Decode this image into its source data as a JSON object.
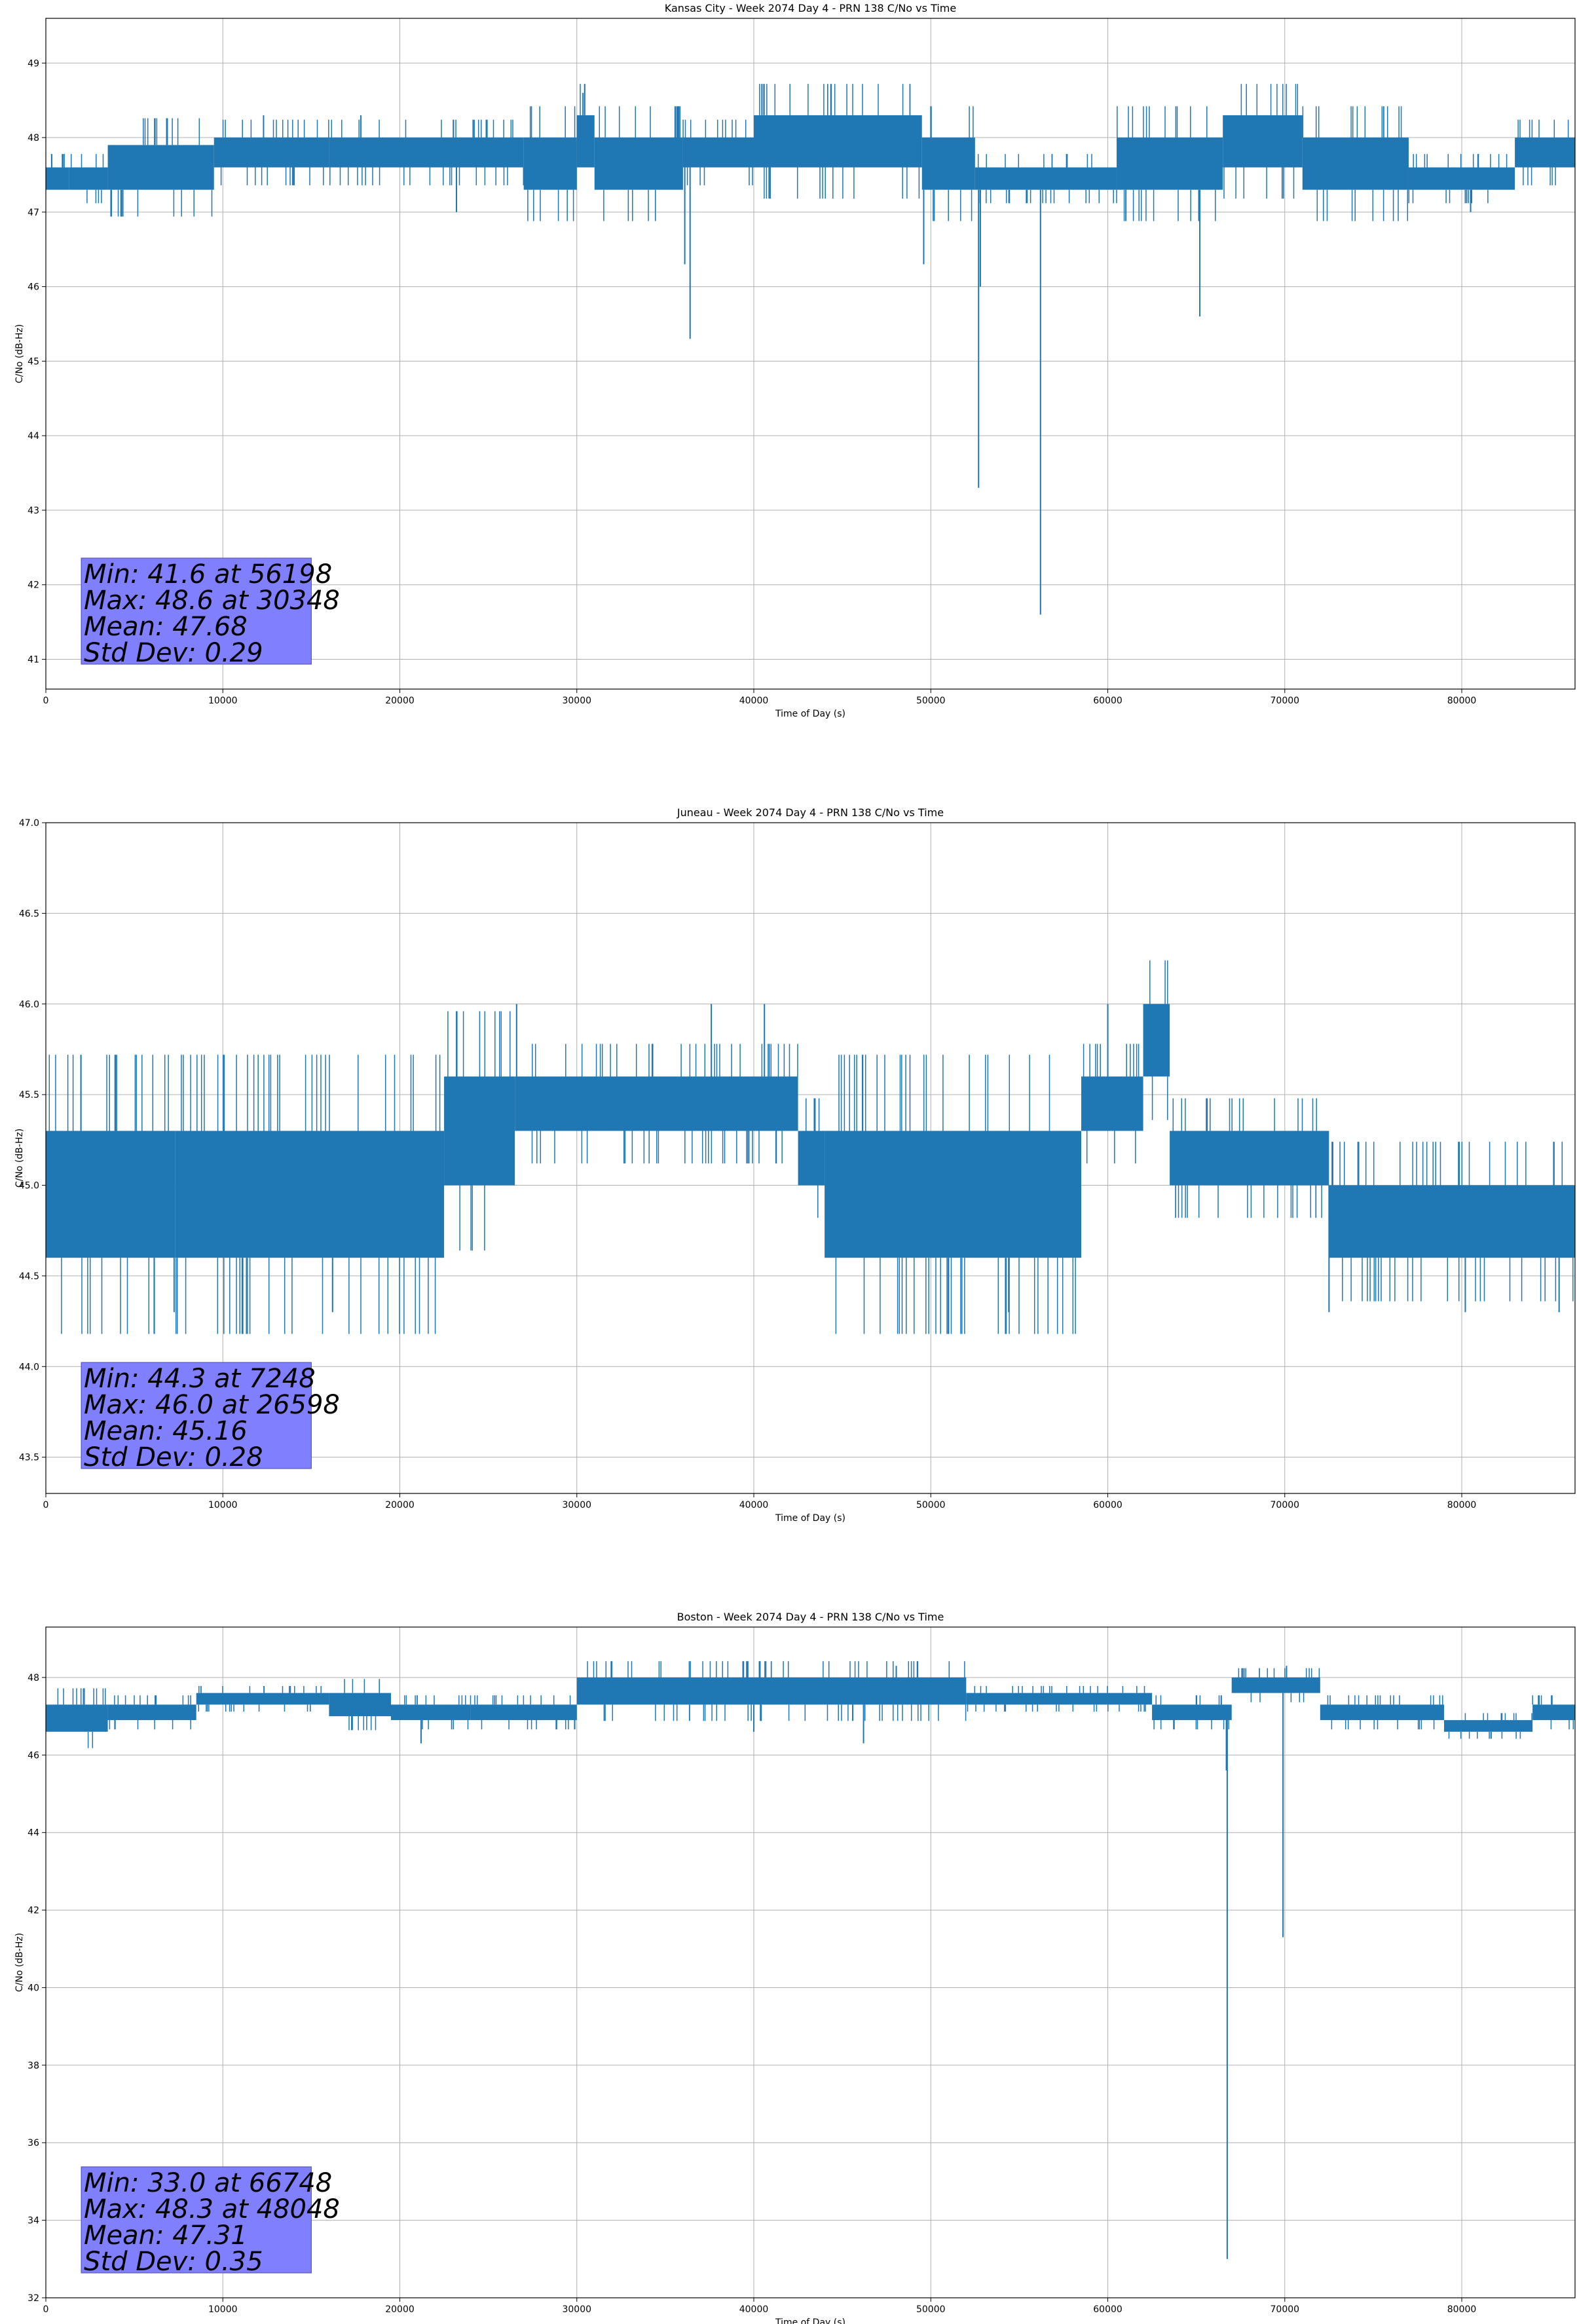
{
  "chart_data": [
    {
      "type": "line",
      "title": "Kansas City - Week 2074 Day 4 - PRN 138 C/No vs Time",
      "xlabel": "Time of Day (s)",
      "ylabel": "C/No (dB-Hz)",
      "xlim": [
        0,
        86400
      ],
      "ylim": [
        40.6,
        49.6
      ],
      "xticks": [
        0,
        10000,
        20000,
        30000,
        40000,
        50000,
        60000,
        70000,
        80000
      ],
      "xtick_labels": [
        "0",
        "10000",
        "20000",
        "30000",
        "40000",
        "50000",
        "60000",
        "70000",
        "80000"
      ],
      "yticks": [
        41,
        42,
        43,
        44,
        45,
        46,
        47,
        48,
        49
      ],
      "ytick_labels": [
        "41",
        "42",
        "43",
        "44",
        "45",
        "46",
        "47",
        "48",
        "49"
      ],
      "grid": true,
      "color": "#1f77b4",
      "series": [
        {
          "band_segments": [
            {
              "x": [
                0,
                1300
              ],
              "y": [
                47.3,
                47.6
              ]
            },
            {
              "x": [
                1300,
                3500
              ],
              "y": [
                47.3,
                47.6
              ]
            },
            {
              "x": [
                3500,
                9500
              ],
              "y": [
                47.3,
                47.9
              ]
            },
            {
              "x": [
                9500,
                16000
              ],
              "y": [
                47.6,
                48.0
              ]
            },
            {
              "x": [
                16000,
                27000
              ],
              "y": [
                47.6,
                48.0
              ]
            },
            {
              "x": [
                27000,
                30000
              ],
              "y": [
                47.3,
                48.0
              ]
            },
            {
              "x": [
                30000,
                31000
              ],
              "y": [
                47.6,
                48.3
              ]
            },
            {
              "x": [
                31000,
                36000
              ],
              "y": [
                47.3,
                48.0
              ]
            },
            {
              "x": [
                36000,
                40000
              ],
              "y": [
                47.6,
                48.0
              ]
            },
            {
              "x": [
                40000,
                49500
              ],
              "y": [
                47.6,
                48.3
              ]
            },
            {
              "x": [
                49500,
                52500
              ],
              "y": [
                47.3,
                48.0
              ]
            },
            {
              "x": [
                52500,
                60500
              ],
              "y": [
                47.3,
                47.6
              ]
            },
            {
              "x": [
                60500,
                66500
              ],
              "y": [
                47.3,
                48.0
              ]
            },
            {
              "x": [
                66500,
                71000
              ],
              "y": [
                47.6,
                48.3
              ]
            },
            {
              "x": [
                71000,
                77000
              ],
              "y": [
                47.3,
                48.0
              ]
            },
            {
              "x": [
                77000,
                83000
              ],
              "y": [
                47.3,
                47.6
              ]
            },
            {
              "x": [
                83000,
                86400
              ],
              "y": [
                47.6,
                48.0
              ]
            }
          ],
          "spikes": [
            {
              "x": 12300,
              "y": 48.3
            },
            {
              "x": 17800,
              "y": 48.3
            },
            {
              "x": 23200,
              "y": 47.0
            },
            {
              "x": 30348,
              "y": 48.6
            },
            {
              "x": 36100,
              "y": 46.3
            },
            {
              "x": 36400,
              "y": 45.3
            },
            {
              "x": 49600,
              "y": 46.3
            },
            {
              "x": 52700,
              "y": 43.3
            },
            {
              "x": 52800,
              "y": 46.0
            },
            {
              "x": 56198,
              "y": 41.6
            },
            {
              "x": 65200,
              "y": 45.6
            },
            {
              "x": 80500,
              "y": 47.0
            }
          ]
        }
      ],
      "stats_box": [
        "Min: 41.6 at 56198",
        "Max: 48.6 at 30348",
        "Mean: 47.68",
        "Std Dev: 0.29"
      ]
    },
    {
      "type": "line",
      "title": "Juneau - Week 2074 Day 4 - PRN 138 C/No vs Time",
      "xlabel": "Time of Day (s)",
      "ylabel": "C/No (dB-Hz)",
      "xlim": [
        0,
        86400
      ],
      "ylim": [
        43.3,
        47.0
      ],
      "xticks": [
        0,
        10000,
        20000,
        30000,
        40000,
        50000,
        60000,
        70000,
        80000
      ],
      "xtick_labels": [
        "0",
        "10000",
        "20000",
        "30000",
        "40000",
        "50000",
        "60000",
        "70000",
        "80000"
      ],
      "yticks": [
        43.5,
        44.0,
        44.5,
        45.0,
        45.5,
        46.0,
        46.5,
        47.0
      ],
      "ytick_labels": [
        "43.5",
        "44.0",
        "44.5",
        "45.0",
        "45.5",
        "46.0",
        "46.5",
        "47.0"
      ],
      "grid": true,
      "color": "#1f77b4",
      "series": [
        {
          "band_segments": [
            {
              "x": [
                0,
                7300
              ],
              "y": [
                44.6,
                45.3
              ]
            },
            {
              "x": [
                7300,
                22500
              ],
              "y": [
                44.6,
                45.3
              ]
            },
            {
              "x": [
                22500,
                26500
              ],
              "y": [
                45.0,
                45.6
              ]
            },
            {
              "x": [
                26500,
                42500
              ],
              "y": [
                45.3,
                45.6
              ]
            },
            {
              "x": [
                42500,
                44000
              ],
              "y": [
                45.0,
                45.3
              ]
            },
            {
              "x": [
                44000,
                58500
              ],
              "y": [
                44.6,
                45.3
              ]
            },
            {
              "x": [
                58500,
                62000
              ],
              "y": [
                45.3,
                45.6
              ]
            },
            {
              "x": [
                62000,
                63500
              ],
              "y": [
                45.6,
                46.0
              ]
            },
            {
              "x": [
                63500,
                72500
              ],
              "y": [
                45.0,
                45.3
              ]
            },
            {
              "x": [
                72500,
                86400
              ],
              "y": [
                44.6,
                45.0
              ]
            }
          ],
          "spikes": [
            {
              "x": 7248,
              "y": 44.3
            },
            {
              "x": 16200,
              "y": 44.3
            },
            {
              "x": 26598,
              "y": 46.0
            },
            {
              "x": 37600,
              "y": 46.0
            },
            {
              "x": 40600,
              "y": 46.0
            },
            {
              "x": 54400,
              "y": 44.3
            },
            {
              "x": 60000,
              "y": 46.0
            },
            {
              "x": 72500,
              "y": 44.3
            },
            {
              "x": 80200,
              "y": 44.3
            },
            {
              "x": 85500,
              "y": 44.3
            }
          ]
        }
      ],
      "stats_box": [
        "Min: 44.3 at 7248",
        "Max: 46.0 at 26598",
        "Mean: 45.16",
        "Std Dev: 0.28"
      ]
    },
    {
      "type": "line",
      "title": "Boston - Week 2074 Day 4 - PRN 138 C/No vs Time",
      "xlabel": "Time of Day (s)",
      "ylabel": "C/No (dB-Hz)",
      "xlim": [
        0,
        86400
      ],
      "ylim": [
        32,
        49.3
      ],
      "xticks": [
        0,
        10000,
        20000,
        30000,
        40000,
        50000,
        60000,
        70000,
        80000
      ],
      "xtick_labels": [
        "0",
        "10000",
        "20000",
        "30000",
        "40000",
        "50000",
        "60000",
        "70000",
        "80000"
      ],
      "yticks": [
        32,
        34,
        36,
        38,
        40,
        42,
        44,
        46,
        48
      ],
      "ytick_labels": [
        "32",
        "34",
        "36",
        "38",
        "40",
        "42",
        "44",
        "46",
        "48"
      ],
      "grid": true,
      "color": "#1f77b4",
      "series": [
        {
          "band_segments": [
            {
              "x": [
                0,
                3500
              ],
              "y": [
                46.6,
                47.3
              ]
            },
            {
              "x": [
                3500,
                8500
              ],
              "y": [
                46.9,
                47.3
              ]
            },
            {
              "x": [
                8500,
                16000
              ],
              "y": [
                47.3,
                47.6
              ]
            },
            {
              "x": [
                16000,
                19500
              ],
              "y": [
                47.0,
                47.6
              ]
            },
            {
              "x": [
                19500,
                24000
              ],
              "y": [
                46.9,
                47.3
              ]
            },
            {
              "x": [
                24000,
                30000
              ],
              "y": [
                46.9,
                47.3
              ]
            },
            {
              "x": [
                30000,
                40000
              ],
              "y": [
                47.3,
                48.0
              ]
            },
            {
              "x": [
                40000,
                52000
              ],
              "y": [
                47.3,
                48.0
              ]
            },
            {
              "x": [
                52000,
                62500
              ],
              "y": [
                47.3,
                47.6
              ]
            },
            {
              "x": [
                62500,
                67000
              ],
              "y": [
                46.9,
                47.3
              ]
            },
            {
              "x": [
                67000,
                72000
              ],
              "y": [
                47.6,
                48.0
              ]
            },
            {
              "x": [
                72000,
                79000
              ],
              "y": [
                46.9,
                47.3
              ]
            },
            {
              "x": [
                79000,
                84000
              ],
              "y": [
                46.6,
                46.9
              ]
            },
            {
              "x": [
                84000,
                86400
              ],
              "y": [
                46.9,
                47.3
              ]
            }
          ],
          "spikes": [
            {
              "x": 21200,
              "y": 46.3
            },
            {
              "x": 40000,
              "y": 46.6
            },
            {
              "x": 46200,
              "y": 46.3
            },
            {
              "x": 48048,
              "y": 48.3
            },
            {
              "x": 66700,
              "y": 45.6
            },
            {
              "x": 66748,
              "y": 33.0
            },
            {
              "x": 69900,
              "y": 41.3
            },
            {
              "x": 70100,
              "y": 48.3
            }
          ]
        }
      ],
      "stats_box": [
        "Min: 33.0 at 66748",
        "Max: 48.3 at 48048",
        "Mean: 47.31",
        "Std Dev: 0.35"
      ]
    }
  ]
}
